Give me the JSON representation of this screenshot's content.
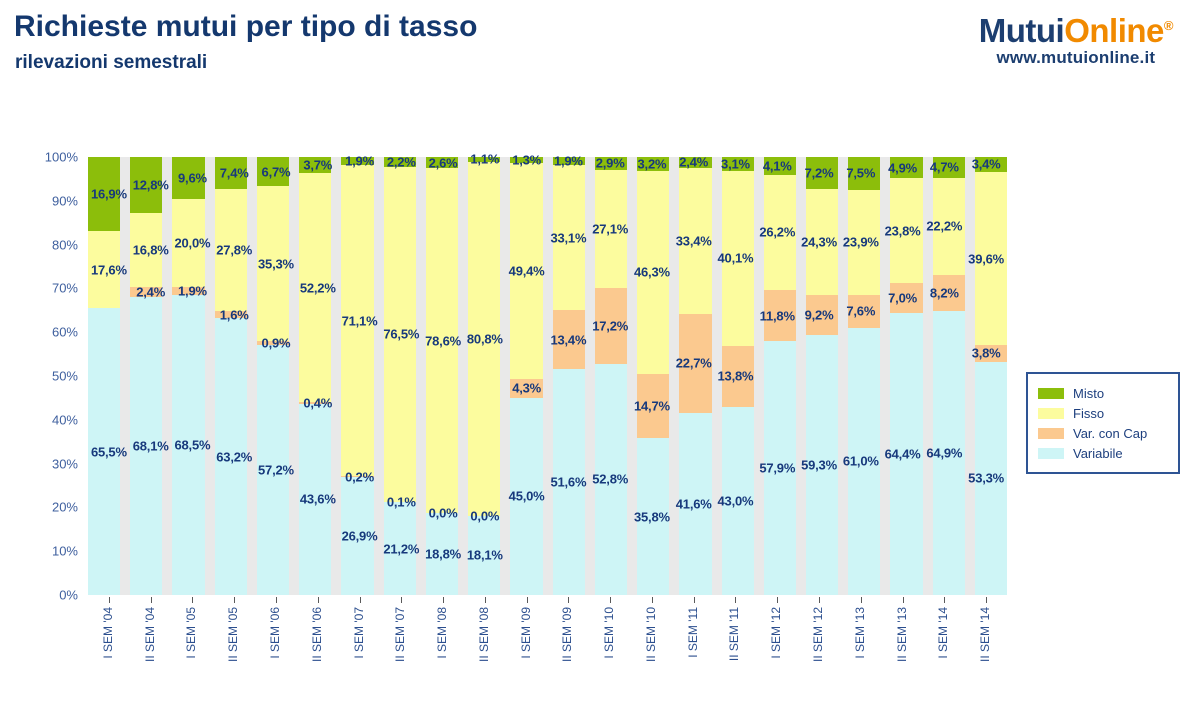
{
  "header": {
    "title": "Richieste mutui per tipo di tasso",
    "subtitle": "rilevazioni semestrali"
  },
  "logo": {
    "part1": "Mutui",
    "part2": "Online",
    "registered": "®",
    "url": "www.mutuionline.it",
    "brand_navy": "#1c3e70",
    "brand_orange": "#f18a00"
  },
  "chart_data": {
    "type": "bar",
    "stacked": true,
    "stacked_total": 100,
    "value_suffix": "%",
    "decimal_separator": ",",
    "grid": false,
    "legend_position": "right",
    "ylim": [
      0,
      100
    ],
    "y_ticks": [
      "0%",
      "10%",
      "20%",
      "30%",
      "40%",
      "50%",
      "60%",
      "70%",
      "80%",
      "90%",
      "100%"
    ],
    "categories": [
      "I SEM '04",
      "II SEM '04",
      "I SEM '05",
      "II SEM '05",
      "I SEM '06",
      "II SEM '06",
      "I SEM '07",
      "II SEM '07",
      "I SEM '08",
      "II SEM '08",
      "I SEM '09",
      "II SEM '09",
      "I SEM '10",
      "II SEM '10",
      "I SEM '11",
      "II SEM '11",
      "I SEM '12",
      "II SEM '12",
      "I SEM '13",
      "II SEM '13",
      "I SEM '14",
      "II SEM '14"
    ],
    "series": [
      {
        "name": "Misto",
        "color": "#8cbe0b",
        "values": [
          16.9,
          12.8,
          9.6,
          7.4,
          6.7,
          3.7,
          1.9,
          2.2,
          2.6,
          1.1,
          1.3,
          1.9,
          2.9,
          3.2,
          2.4,
          3.1,
          4.1,
          7.2,
          7.5,
          4.9,
          4.7,
          3.4
        ]
      },
      {
        "name": "Fisso",
        "color": "#fcfc9e",
        "values": [
          17.6,
          16.8,
          20.0,
          27.8,
          35.3,
          52.2,
          71.1,
          76.5,
          78.6,
          80.8,
          49.4,
          33.1,
          27.1,
          46.3,
          33.4,
          40.1,
          26.2,
          24.3,
          23.9,
          23.8,
          22.2,
          39.6
        ]
      },
      {
        "name": "Var. con Cap",
        "color": "#fbc98f",
        "values": [
          null,
          2.4,
          1.9,
          1.6,
          0.9,
          0.4,
          0.2,
          0.1,
          0.0,
          0.0,
          4.3,
          13.4,
          17.2,
          14.7,
          22.7,
          13.8,
          11.8,
          9.2,
          7.6,
          7.0,
          8.2,
          3.8
        ]
      },
      {
        "name": "Variabile",
        "color": "#cef5f6",
        "values": [
          65.5,
          68.1,
          68.5,
          63.2,
          57.2,
          43.6,
          26.9,
          21.2,
          18.8,
          18.1,
          45.0,
          51.6,
          52.8,
          35.8,
          41.6,
          43.0,
          57.9,
          59.3,
          61.0,
          64.4,
          64.9,
          53.3
        ]
      }
    ],
    "colors": {
      "gap": "#e9e9e9",
      "label_text": "#17397c",
      "axis_text": "#3e5f9e"
    }
  }
}
